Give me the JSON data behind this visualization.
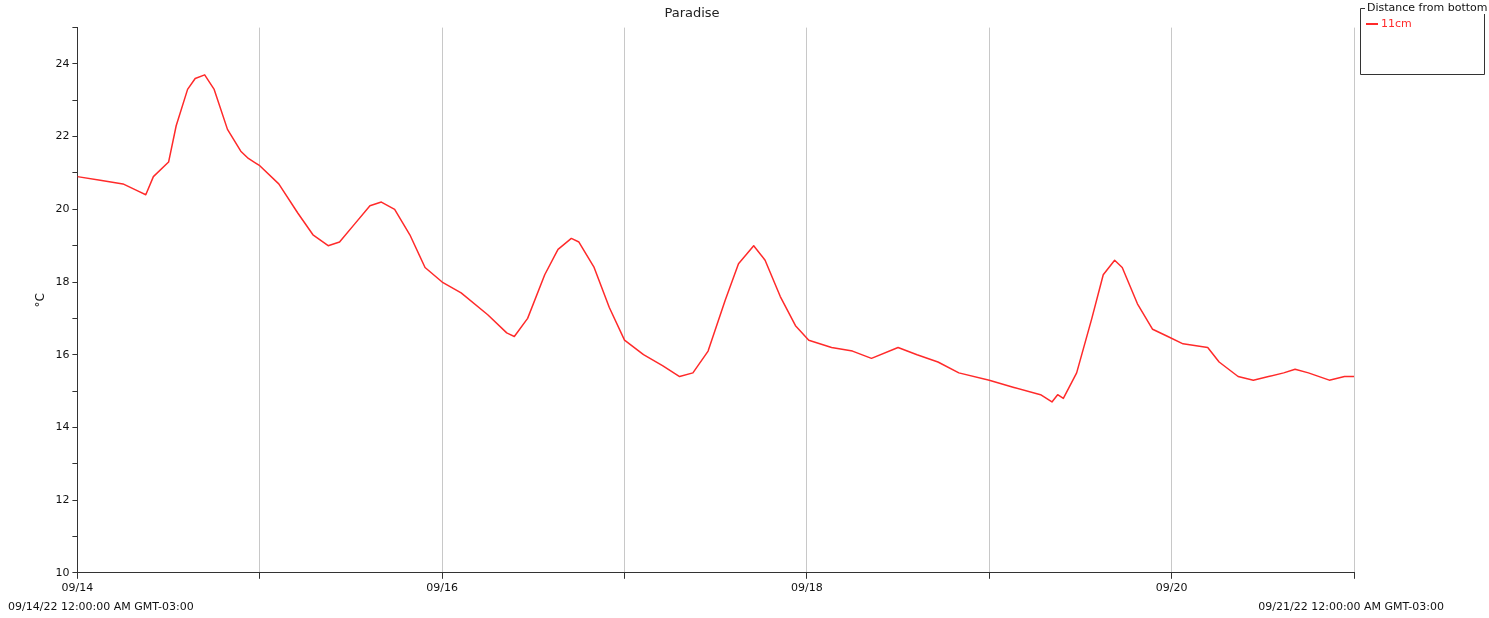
{
  "chart_data": {
    "type": "line",
    "title": "Paradise",
    "ylabel": "°C",
    "legend_title": "Distance from bottom",
    "legend": "top right",
    "grid": "x",
    "marker": "none",
    "line_style": "solid",
    "xlim": [
      "--09-14",
      "--09-21"
    ],
    "xticks": [
      {
        "value": "--09-14",
        "label": "09/14"
      },
      {
        "value": "--09-15",
        "label": null
      },
      {
        "value": "--09-16",
        "label": "09/16"
      },
      {
        "value": "--09-17",
        "label": null
      },
      {
        "value": "--09-18",
        "label": "09/18"
      },
      {
        "value": "--09-19",
        "label": null
      },
      {
        "value": "--09-20",
        "label": "09/20"
      },
      {
        "value": "--09-21",
        "label": null
      }
    ],
    "ylim": [
      10,
      25
    ],
    "yticks": [
      10,
      {
        "value": 11,
        "label": null
      },
      12,
      {
        "value": 13,
        "label": null
      },
      14,
      {
        "value": 15,
        "label": null
      },
      16,
      {
        "value": 17,
        "label": null
      },
      18,
      {
        "value": 19,
        "label": null
      },
      20,
      {
        "value": 21,
        "label": null
      },
      22,
      {
        "value": 23,
        "label": null
      },
      24,
      {
        "value": 25,
        "label": null
      }
    ],
    "annotations": [
      "09/14/22 12:00:00 AM GMT-03:00",
      "09/21/22 12:00:00 AM GMT-03:00"
    ],
    "x": [
      "--09-14T00:00",
      "--09-14T03:00",
      "--09-14T06:00",
      "--09-14T08:00",
      "--09-14T09:00",
      "--09-14T10:00",
      "--09-14T12:00",
      "--09-14T13:00",
      "--09-14T14:30",
      "--09-14T15:30",
      "--09-14T16:45",
      "--09-14T18:00",
      "--09-14T19:45",
      "--09-14T21:30",
      "--09-14T22:30",
      "--09-15T00:00",
      "--09-15T02:30",
      "--09-15T05:00",
      "--09-15T07:00",
      "--09-15T09:00",
      "--09-15T10:30",
      "--09-15T12:30",
      "--09-15T14:30",
      "--09-15T16:00",
      "--09-15T17:45",
      "--09-15T19:45",
      "--09-15T21:45",
      "--09-16T00:00",
      "--09-16T02:30",
      "--09-16T06:00",
      "--09-16T08:30",
      "--09-16T09:30",
      "--09-16T11:15",
      "--09-16T13:30",
      "--09-16T15:15",
      "--09-16T17:00",
      "--09-16T18:00",
      "--09-16T20:00",
      "--09-16T22:00",
      "--09-17T00:00",
      "--09-17T02:30",
      "--09-17T05:00",
      "--09-17T07:15",
      "--09-17T09:00",
      "--09-17T11:00",
      "--09-17T13:15",
      "--09-17T15:00",
      "--09-17T17:00",
      "--09-17T18:30",
      "--09-17T20:30",
      "--09-17T22:30",
      "--09-18T00:15",
      "--09-18T03:15",
      "--09-18T06:00",
      "--09-18T08:30",
      "--09-18T12:00",
      "--09-18T14:30",
      "--09-18T17:15",
      "--09-18T20:00",
      "--09-19T00:00",
      "--09-19T03:15",
      "--09-19T06:45",
      "--09-19T08:15",
      "--09-19T09:00",
      "--09-19T09:45",
      "--09-19T11:30",
      "--09-19T13:30",
      "--09-19T15:00",
      "--09-19T16:30",
      "--09-19T17:30",
      "--09-19T19:30",
      "--09-19T21:30",
      "--09-19T23:30",
      "--09-20T01:30",
      "--09-20T04:45",
      "--09-20T06:15",
      "--09-20T08:45",
      "--09-20T10:45",
      "--09-20T12:45",
      "--09-20T14:45",
      "--09-20T16:15",
      "--09-20T18:00",
      "--09-20T20:45",
      "--09-20T22:45",
      "--09-21T00:00"
    ],
    "series": [
      {
        "name": "11cm",
        "color": "#ff2a2a",
        "values": [
          20.9,
          20.8,
          20.7,
          20.5,
          20.4,
          20.9,
          21.3,
          22.3,
          23.3,
          23.6,
          23.7,
          23.3,
          22.2,
          21.6,
          21.4,
          21.2,
          20.7,
          19.9,
          19.3,
          19.0,
          19.1,
          19.6,
          20.1,
          20.2,
          20.0,
          19.3,
          18.4,
          18.0,
          17.7,
          17.1,
          16.6,
          16.5,
          17.0,
          18.2,
          18.9,
          19.2,
          19.1,
          18.4,
          17.3,
          16.4,
          16.0,
          15.7,
          15.4,
          15.5,
          16.1,
          17.5,
          18.5,
          19.0,
          18.6,
          17.6,
          16.8,
          16.4,
          16.2,
          16.1,
          15.9,
          16.2,
          16.0,
          15.8,
          15.5,
          15.3,
          15.1,
          14.9,
          14.7,
          14.9,
          14.8,
          15.5,
          17.0,
          18.2,
          18.6,
          18.4,
          17.4,
          16.7,
          16.5,
          16.3,
          16.2,
          15.8,
          15.4,
          15.3,
          15.4,
          15.5,
          15.6,
          15.5,
          15.3,
          15.4,
          15.4
        ]
      }
    ]
  }
}
